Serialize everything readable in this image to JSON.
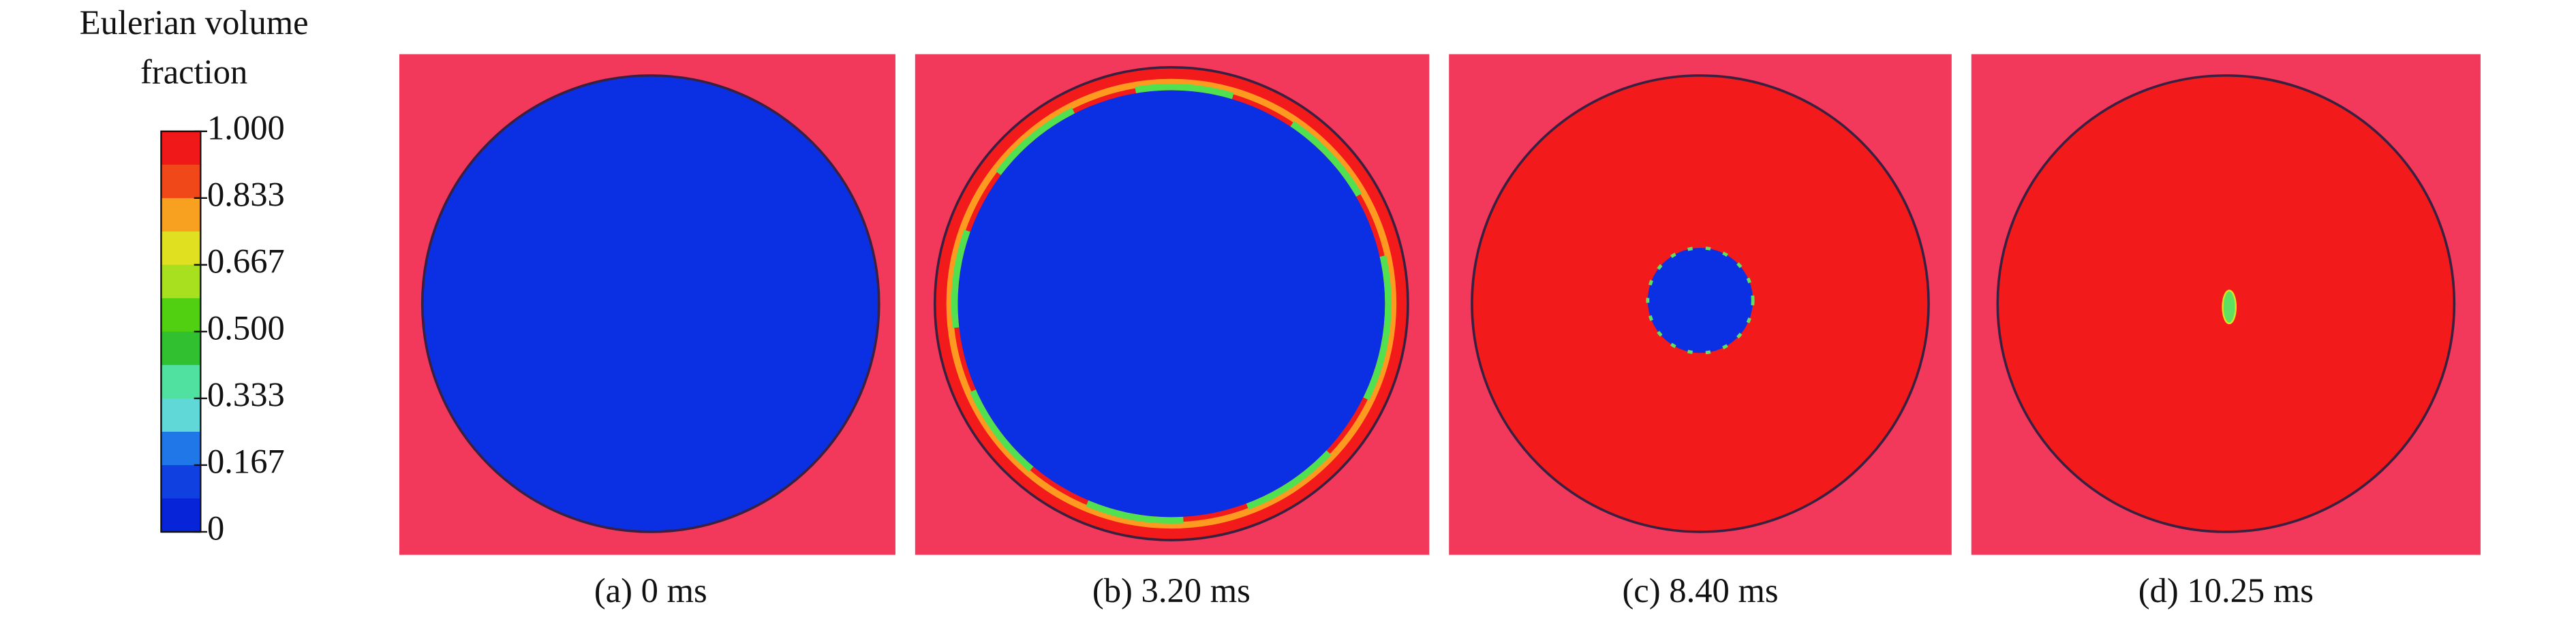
{
  "legend": {
    "title_lines": [
      "Eulerian volume",
      "fraction"
    ],
    "ticks": [
      "1.000",
      "0.833",
      "0.667",
      "0.500",
      "0.333",
      "0.167",
      "0"
    ]
  },
  "panels": [
    {
      "caption": "(a) 0 ms"
    },
    {
      "caption": "(b) 3.20 ms"
    },
    {
      "caption": "(c) 8.40 ms"
    },
    {
      "caption": "(d) 10.25 ms"
    }
  ]
}
